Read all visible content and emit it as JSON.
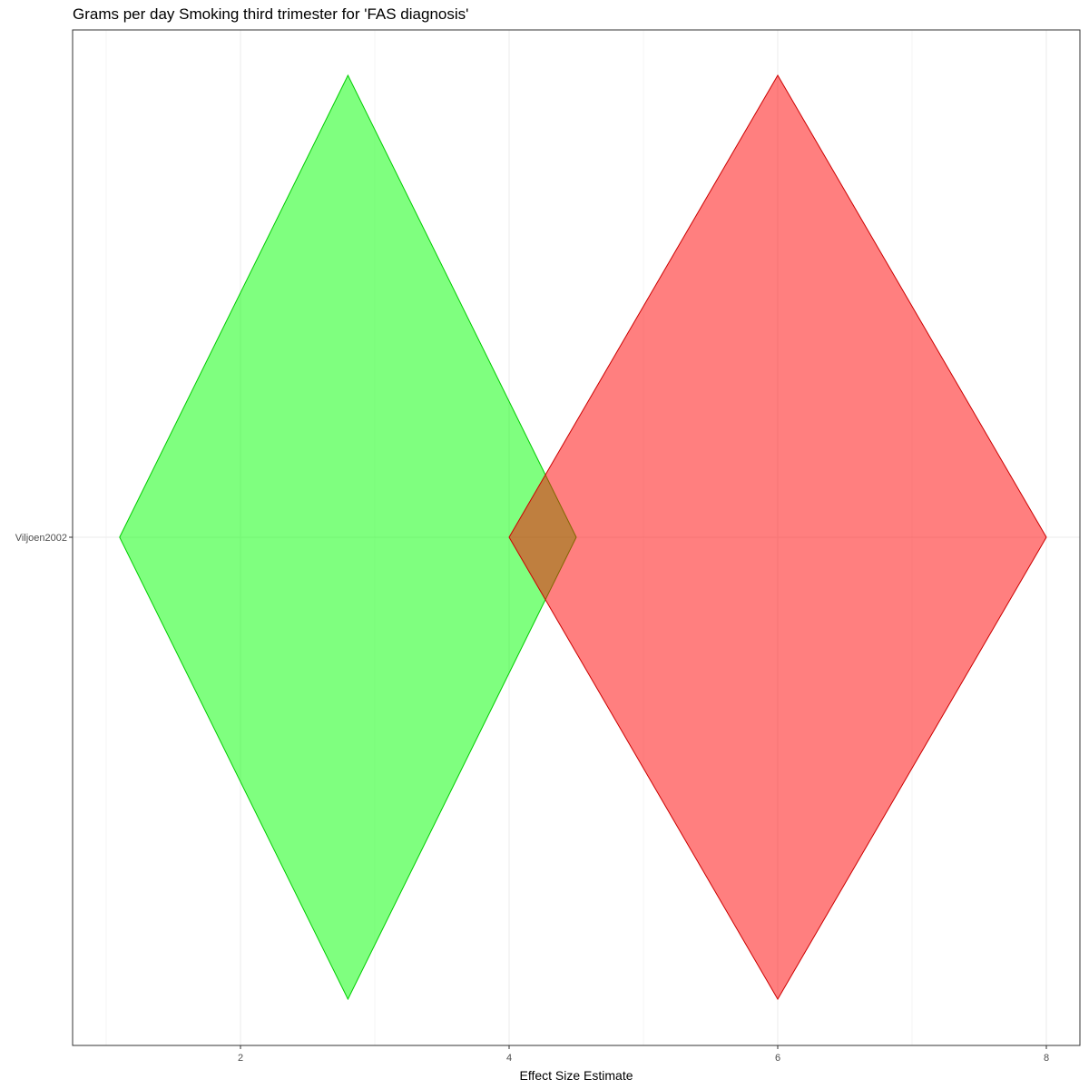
{
  "chart_data": {
    "type": "forest-diamond",
    "title": "Grams per day Smoking third trimester for 'FAS diagnosis'",
    "xlabel": "Effect Size Estimate",
    "ylabel": "",
    "xlim": [
      0.75,
      8.25
    ],
    "x_ticks": [
      2,
      4,
      6,
      8
    ],
    "x_tick_labels": [
      "2",
      "4",
      "6",
      "8"
    ],
    "categories": [
      "Viljoen2002"
    ],
    "grid": true,
    "series": [
      {
        "name": "green-estimate",
        "category": "Viljoen2002",
        "lower": 1.1,
        "estimate": 2.8,
        "upper": 4.5,
        "fill": "#00ff00",
        "stroke": "#00cc00",
        "opacity": 0.5
      },
      {
        "name": "red-estimate",
        "category": "Viljoen2002",
        "lower": 4.0,
        "estimate": 6.0,
        "upper": 8.0,
        "fill": "#ff0000",
        "stroke": "#cc0000",
        "opacity": 0.5
      }
    ]
  }
}
